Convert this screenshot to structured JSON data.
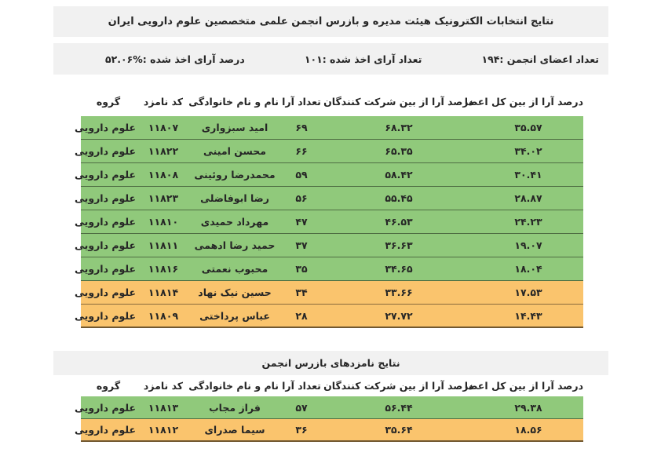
{
  "title_bar": {
    "title": "نتایج انتخابات الکترونیک هیئت مدیره و بازرس انجمن علمی متخصصین علوم دارویی ایران"
  },
  "stats_bar": {
    "members": "تعداد اعضای انجمن :۱۹۴",
    "votes_cast": "تعداد آرای اخذ شده :۱۰۱",
    "votes_percent": "درصد آرای اخذ شده :%۵۲.۰۶"
  },
  "columns": [
    "درصد آرا از بین کل اعضا",
    "درصد آرا از بین شرکت کنندگان",
    "تعداد آرا",
    "نام و نام خانوادگی",
    "کد نامزد",
    "گروه"
  ],
  "board_table": {
    "rows": [
      {
        "percent_total": "۳۵.۵۷",
        "percent_participants": "۶۸.۳۲",
        "votes": "۶۹",
        "name": "امید سبزواری",
        "code": "۱۱۸۰۷",
        "group": "علوم دارویی",
        "highlight": "green"
      },
      {
        "percent_total": "۳۴.۰۲",
        "percent_participants": "۶۵.۳۵",
        "votes": "۶۶",
        "name": "محسن امینی",
        "code": "۱۱۸۲۲",
        "group": "علوم دارویی",
        "highlight": "green"
      },
      {
        "percent_total": "۳۰.۴۱",
        "percent_participants": "۵۸.۴۲",
        "votes": "۵۹",
        "name": "محمدرضا روئینی",
        "code": "۱۱۸۰۸",
        "group": "علوم دارویی",
        "highlight": "green"
      },
      {
        "percent_total": "۲۸.۸۷",
        "percent_participants": "۵۵.۴۵",
        "votes": "۵۶",
        "name": "رضا ابوفاضلی",
        "code": "۱۱۸۲۳",
        "group": "علوم دارویی",
        "highlight": "green"
      },
      {
        "percent_total": "۲۴.۲۳",
        "percent_participants": "۴۶.۵۳",
        "votes": "۴۷",
        "name": "مهرداد حمیدی",
        "code": "۱۱۸۱۰",
        "group": "علوم دارویی",
        "highlight": "green"
      },
      {
        "percent_total": "۱۹.۰۷",
        "percent_participants": "۳۶.۶۳",
        "votes": "۳۷",
        "name": "حمید رضا ادهمی",
        "code": "۱۱۸۱۱",
        "group": "علوم دارویی",
        "highlight": "green"
      },
      {
        "percent_total": "۱۸.۰۴",
        "percent_participants": "۳۴.۶۵",
        "votes": "۳۵",
        "name": "محبوب نعمتی",
        "code": "۱۱۸۱۶",
        "group": "علوم دارویی",
        "highlight": "green"
      },
      {
        "percent_total": "۱۷.۵۳",
        "percent_participants": "۳۳.۶۶",
        "votes": "۳۴",
        "name": "حسین نیک نهاد",
        "code": "۱۱۸۱۴",
        "group": "علوم دارویی",
        "highlight": "orange"
      },
      {
        "percent_total": "۱۴.۴۳",
        "percent_participants": "۲۷.۷۲",
        "votes": "۲۸",
        "name": "عباس پرداختی",
        "code": "۱۱۸۰۹",
        "group": "علوم دارویی",
        "highlight": "orange"
      }
    ]
  },
  "inspector_section": {
    "title": "نتایج نامزدهای بازرس انجمن",
    "rows": [
      {
        "percent_total": "۲۹.۳۸",
        "percent_participants": "۵۶.۴۴",
        "votes": "۵۷",
        "name": "فراز مجاب",
        "code": "۱۱۸۱۳",
        "group": "علوم دارویی",
        "highlight": "green"
      },
      {
        "percent_total": "۱۸.۵۶",
        "percent_participants": "۳۵.۶۴",
        "votes": "۳۶",
        "name": "سیما صدرای",
        "code": "۱۱۸۱۲",
        "group": "علوم دارویی",
        "highlight": "orange"
      }
    ]
  },
  "colors": {
    "qualified_green": "#90C97B",
    "runner_up_orange": "#FAC46D",
    "bar_background": "#F1F1F1"
  }
}
